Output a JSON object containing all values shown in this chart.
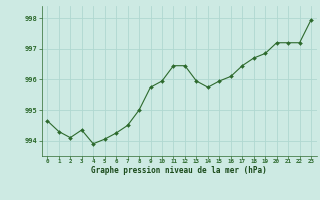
{
  "x": [
    0,
    1,
    2,
    3,
    4,
    5,
    6,
    7,
    8,
    9,
    10,
    11,
    12,
    13,
    14,
    15,
    16,
    17,
    18,
    19,
    20,
    21,
    22,
    23
  ],
  "y": [
    994.65,
    994.3,
    994.1,
    994.35,
    993.9,
    994.05,
    994.25,
    994.5,
    995.0,
    995.75,
    995.95,
    996.45,
    996.45,
    995.95,
    995.75,
    995.95,
    996.1,
    996.45,
    996.7,
    996.85,
    997.2,
    997.2,
    997.2,
    997.95
  ],
  "line_color": "#2d6a2d",
  "marker_color": "#2d6a2d",
  "bg_color": "#cdeae3",
  "grid_color": "#b0d8d0",
  "xlabel": "Graphe pression niveau de la mer (hPa)",
  "xlabel_color": "#1a4a1a",
  "tick_color": "#2d6a2d",
  "ylim": [
    993.5,
    998.4
  ],
  "yticks": [
    994,
    995,
    996,
    997,
    998
  ],
  "xticks": [
    0,
    1,
    2,
    3,
    4,
    5,
    6,
    7,
    8,
    9,
    10,
    11,
    12,
    13,
    14,
    15,
    16,
    17,
    18,
    19,
    20,
    21,
    22,
    23
  ],
  "figsize": [
    3.2,
    2.0
  ],
  "dpi": 100
}
